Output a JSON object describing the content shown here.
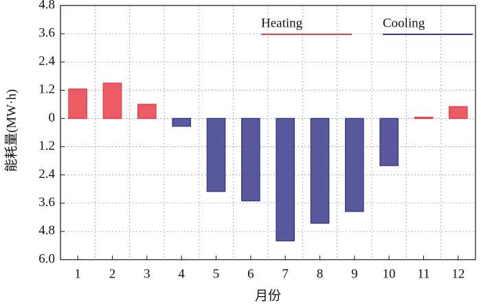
{
  "chart_data": {
    "type": "bar",
    "x_label": "月份",
    "y_label": "能耗量(MW·h)",
    "categories": [
      "1",
      "2",
      "3",
      "4",
      "5",
      "6",
      "7",
      "8",
      "9",
      "10",
      "11",
      "12"
    ],
    "series": [
      {
        "name": "Heating",
        "color": "#e8404a",
        "values": [
          1.25,
          1.5,
          0.6,
          0,
          0,
          0,
          0,
          0,
          0,
          0,
          0.05,
          0.5
        ]
      },
      {
        "name": "Cooling",
        "color": "#3c3c8c",
        "values": [
          0,
          0,
          0,
          0.33,
          3.1,
          3.5,
          5.2,
          4.45,
          3.95,
          2.0,
          0,
          0
        ]
      }
    ],
    "cooling_downward": true,
    "ylim": [
      -6.0,
      4.8
    ],
    "yticks": [
      4.8,
      3.6,
      2.4,
      1.2,
      0,
      {
        "value": -1.2,
        "label": "1.2"
      },
      {
        "value": -2.4,
        "label": "2.4"
      },
      {
        "value": -3.6,
        "label": "3.6"
      },
      {
        "value": -4.8,
        "label": "4.8"
      },
      {
        "value": -6.0,
        "label": "6.0"
      }
    ],
    "grid": true,
    "legend": "top-right"
  }
}
